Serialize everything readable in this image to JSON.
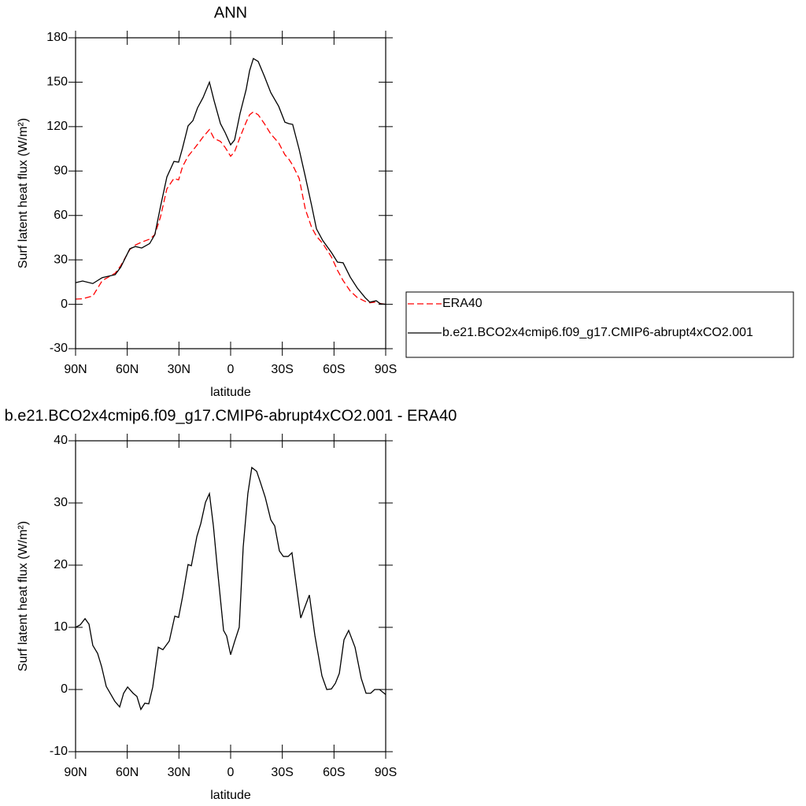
{
  "chart_data": [
    {
      "type": "line",
      "title": "ANN",
      "x_label": "latitude",
      "y_label": "Surf latent heat flux (W/m²)",
      "xlim": [
        90,
        -90
      ],
      "ylim": [
        -30,
        180
      ],
      "xticks": [
        {
          "value": 90,
          "label": "90N"
        },
        {
          "value": 60,
          "label": "60N"
        },
        {
          "value": 30,
          "label": "30N"
        },
        0,
        {
          "value": -30,
          "label": "30S"
        },
        {
          "value": -60,
          "label": "60S"
        },
        {
          "value": -90,
          "label": "90S"
        }
      ],
      "yticks": [
        -30,
        0,
        30,
        60,
        90,
        120,
        150,
        180
      ],
      "legend": "right",
      "x": [
        90,
        85.9,
        80,
        74.5,
        67,
        63.8,
        58.5,
        55.3,
        51.6,
        47,
        44,
        40.7,
        37,
        32.9,
        30.2,
        27.9,
        24.7,
        21.9,
        19.2,
        16,
        12.3,
        9.6,
        5.9,
        3.2,
        0,
        -2.3,
        -5.5,
        -9,
        -11,
        -13.2,
        -16,
        -19.6,
        -23.3,
        -27.9,
        -31.5,
        -33.8,
        -36,
        -39.8,
        -43.4,
        -47,
        -49.8,
        -53.5,
        -58.5,
        -62,
        -65.3,
        -69.4,
        -73.5,
        -78,
        -80.8,
        -84.5,
        -87,
        -90
      ],
      "series": [
        {
          "name": "ERA40",
          "color": "#ff0000",
          "line_style": "dashed",
          "values": [
            3.5,
            3.7,
            5.6,
            16,
            21,
            26,
            37,
            40,
            42,
            44,
            47,
            59,
            78,
            85,
            84,
            93,
            100,
            104,
            108,
            113,
            118,
            112,
            110,
            106,
            100,
            103,
            113,
            123,
            128,
            130,
            128,
            122,
            115,
            109,
            101,
            98,
            94,
            85,
            64,
            52,
            46,
            41,
            32,
            23,
            16,
            9,
            4.6,
            2,
            1,
            1.5,
            0.5,
            0
          ]
        },
        {
          "name": "b.e21.BCO2x4cmip6.f09_g17.CMIP6-abrupt4xCO2.001",
          "color": "#000000",
          "line_style": "solid",
          "values": [
            14.6,
            15.7,
            14,
            18,
            20,
            25,
            37.5,
            39,
            38,
            41,
            47,
            66,
            86,
            96.5,
            96,
            105.6,
            120.5,
            124,
            132.7,
            139.6,
            150,
            137.5,
            122,
            116,
            107.7,
            111,
            129,
            145,
            157.7,
            166,
            164,
            154,
            143,
            133.7,
            123,
            122,
            121.5,
            104.5,
            86,
            66.8,
            51,
            43,
            35,
            28.5,
            28,
            18.4,
            11,
            4.6,
            1.4,
            2.4,
            0.3,
            0
          ]
        }
      ]
    },
    {
      "type": "line",
      "title": "b.e21.BCO2x4cmip6.f09_g17.CMIP6-abrupt4xCO2.001 - ERA40",
      "x_label": "latitude",
      "y_label": "Surf latent heat flux (W/m²)",
      "xlim": [
        90,
        -90
      ],
      "ylim": [
        -10,
        40
      ],
      "xticks": [
        {
          "value": 90,
          "label": "90N"
        },
        {
          "value": 60,
          "label": "60N"
        },
        {
          "value": 30,
          "label": "30N"
        },
        0,
        {
          "value": -30,
          "label": "30S"
        },
        {
          "value": -60,
          "label": "60S"
        },
        {
          "value": -90,
          "label": "90S"
        }
      ],
      "yticks": [
        -10,
        0,
        10,
        20,
        30,
        40
      ],
      "x": [
        90,
        87.3,
        84.5,
        82.2,
        80,
        77.2,
        74.9,
        72.2,
        67.2,
        64.4,
        62.1,
        59.8,
        56.6,
        54.4,
        52.1,
        49.8,
        47.5,
        45.2,
        42,
        39.3,
        35.6,
        32.4,
        30.2,
        27.9,
        24.7,
        22.8,
        19.6,
        17.3,
        14.6,
        12.3,
        10,
        7.7,
        4.1,
        2.3,
        0,
        -2.3,
        -5,
        -7.3,
        -10,
        -12.3,
        -15.1,
        -17.3,
        -20.1,
        -23.3,
        -25.6,
        -28.3,
        -30.6,
        -33.4,
        -35.6,
        -38.4,
        -40.7,
        -45.7,
        -48.9,
        -53,
        -55.8,
        -58.5,
        -60.8,
        -63.1,
        -65.8,
        -68.5,
        -72.2,
        -75.8,
        -78.6,
        -81.3,
        -83.6,
        -86.4,
        -90
      ],
      "series": [
        {
          "color": "#000000",
          "line_style": "solid",
          "values": [
            10,
            10.4,
            11.4,
            10.5,
            7.1,
            5.8,
            3.7,
            0.5,
            -1.9,
            -2.8,
            -0.6,
            0.4,
            -0.6,
            -1.1,
            -3.2,
            -2.2,
            -2.3,
            0.4,
            6.8,
            6.4,
            7.8,
            11.8,
            11.6,
            14.9,
            20.1,
            19.9,
            24.6,
            26.7,
            30.1,
            31.5,
            26.3,
            19.5,
            9.5,
            8.6,
            5.6,
            7.7,
            10,
            22.9,
            31.5,
            35.7,
            35.1,
            33.3,
            30.9,
            27.3,
            26.3,
            22.3,
            21.4,
            21.4,
            22,
            16.2,
            11.5,
            15.2,
            8.7,
            2.2,
            0,
            0.1,
            1,
            2.6,
            8,
            9.5,
            6.8,
            1.8,
            -0.6,
            -0.6,
            0,
            0,
            -0.8
          ]
        }
      ]
    }
  ]
}
